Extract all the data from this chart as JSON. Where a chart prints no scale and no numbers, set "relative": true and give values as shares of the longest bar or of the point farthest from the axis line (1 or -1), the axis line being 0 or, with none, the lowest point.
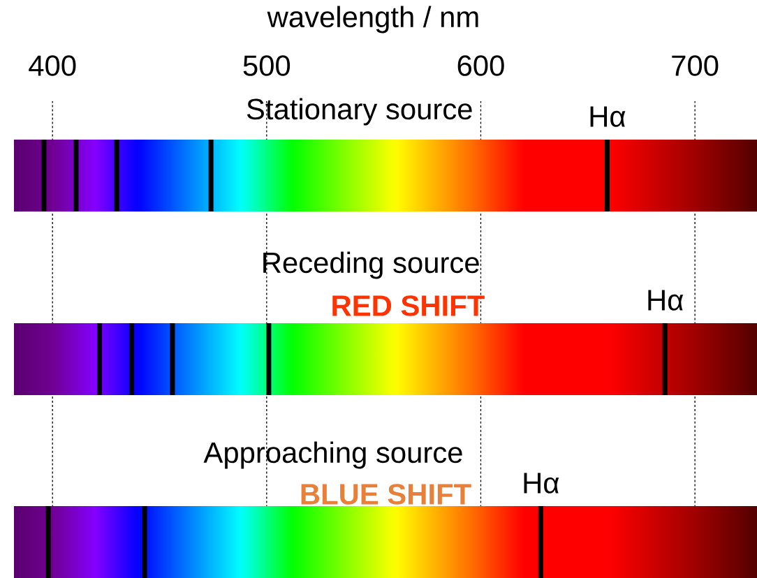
{
  "chart_data": [
    {
      "type": "bar",
      "relative": true,
      "xlabel": "wavelength / nm",
      "title": "Stationary source",
      "xlim": [
        382,
        729
      ],
      "xticks": [
        400,
        500,
        600,
        700
      ],
      "grid": "x",
      "tick_labels": "x",
      "color": "#000000",
      "x": [
        396,
        411,
        430,
        474,
        659
      ],
      "values": [
        1,
        1,
        1,
        1,
        1
      ],
      "annotations": [
        {
          "text": "Hα",
          "x": 659,
          "y": 1
        }
      ]
    },
    {
      "type": "bar",
      "relative": true,
      "title": "Receding source",
      "subtitle": "RED SHIFT",
      "xlim": [
        382,
        729
      ],
      "xticks": [
        400,
        500,
        600,
        700
      ],
      "grid": "x",
      "tick_labels": false,
      "color": "#000000",
      "x": [
        422,
        437,
        456,
        501,
        686
      ],
      "values": [
        1,
        1,
        1,
        1,
        1
      ],
      "annotations": [
        {
          "text": "Hα",
          "x": 686,
          "y": 1
        }
      ]
    },
    {
      "type": "bar",
      "relative": true,
      "title": "Approaching source",
      "subtitle": "BLUE SHIFT",
      "xlim": [
        382,
        729
      ],
      "xticks": [
        400,
        500,
        600,
        700
      ],
      "grid": "x",
      "tick_labels": false,
      "color": "#000000",
      "x": [
        398,
        443,
        628
      ],
      "values": [
        1,
        1,
        1
      ],
      "annotations": [
        {
          "text": "Hα",
          "x": 628,
          "y": 1
        }
      ]
    }
  ]
}
